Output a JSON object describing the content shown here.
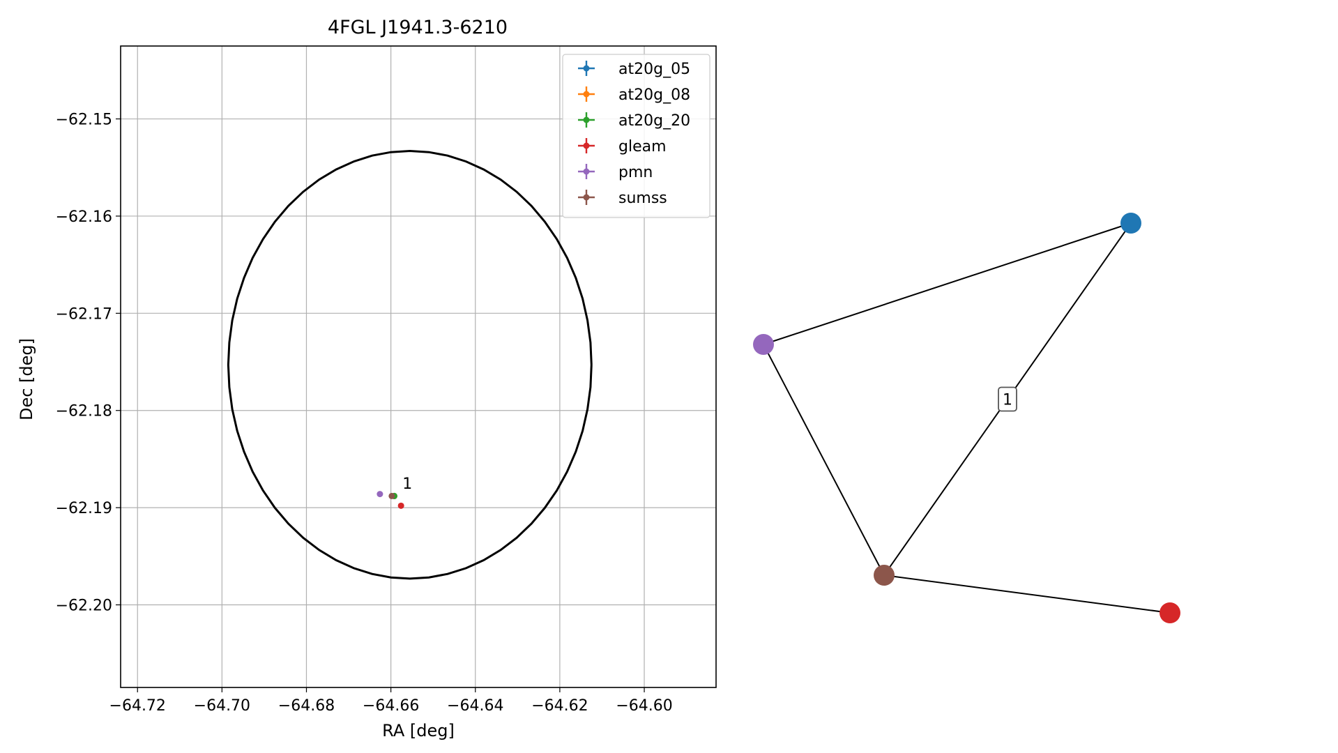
{
  "chart_data": [
    {
      "type": "scatter",
      "title": "4FGL J1941.3-6210",
      "xlabel": "RA [deg]",
      "ylabel": "Dec [deg]",
      "xlim": [
        -64.724,
        -64.583
      ],
      "ylim": [
        -62.2085,
        -62.1425
      ],
      "xticks": [
        -64.72,
        -64.7,
        -64.68,
        -64.66,
        -64.64,
        -64.62,
        -64.6
      ],
      "xtick_labels": [
        "−64.72",
        "−64.70",
        "−64.68",
        "−64.66",
        "−64.64",
        "−64.62",
        "−64.60"
      ],
      "yticks": [
        -62.15,
        -62.16,
        -62.17,
        -62.18,
        -62.19,
        -62.2
      ],
      "ytick_labels": [
        "−62.15",
        "−62.16",
        "−62.17",
        "−62.18",
        "−62.19",
        "−62.20"
      ],
      "grid": true,
      "legend_position": "top-right",
      "ellipse": {
        "center_ra": -64.6555,
        "center_dec": -62.1753,
        "half_width_ra": 0.043,
        "half_height_dec": 0.022,
        "color": "#000000"
      },
      "series": [
        {
          "name": "at20g_05",
          "color": "#1f77b4",
          "ra": -64.6592,
          "dec": -62.1888
        },
        {
          "name": "at20g_08",
          "color": "#ff7f0e",
          "ra": -64.6592,
          "dec": -62.1888
        },
        {
          "name": "at20g_20",
          "color": "#2ca02c",
          "ra": -64.6592,
          "dec": -62.1888
        },
        {
          "name": "gleam",
          "color": "#d62728",
          "ra": -64.6576,
          "dec": -62.1898
        },
        {
          "name": "pmn",
          "color": "#9467bd",
          "ra": -64.6626,
          "dec": -62.1886
        },
        {
          "name": "sumss",
          "color": "#8c564b",
          "ra": -64.6598,
          "dec": -62.1888
        }
      ],
      "annotations": [
        {
          "text": "1",
          "ra": -64.6589,
          "dec": -62.1882
        }
      ]
    },
    {
      "type": "network",
      "nodes": [
        {
          "id": "at20g",
          "color": "#1f77b4"
        },
        {
          "id": "pmn",
          "color": "#9467bd"
        },
        {
          "id": "sumss",
          "color": "#8c564b"
        },
        {
          "id": "gleam",
          "color": "#d62728"
        }
      ],
      "edges": [
        {
          "source": "pmn",
          "target": "at20g",
          "label": ""
        },
        {
          "source": "at20g",
          "target": "sumss",
          "label": "1"
        },
        {
          "source": "pmn",
          "target": "sumss",
          "label": ""
        },
        {
          "source": "sumss",
          "target": "gleam",
          "label": ""
        }
      ]
    }
  ]
}
